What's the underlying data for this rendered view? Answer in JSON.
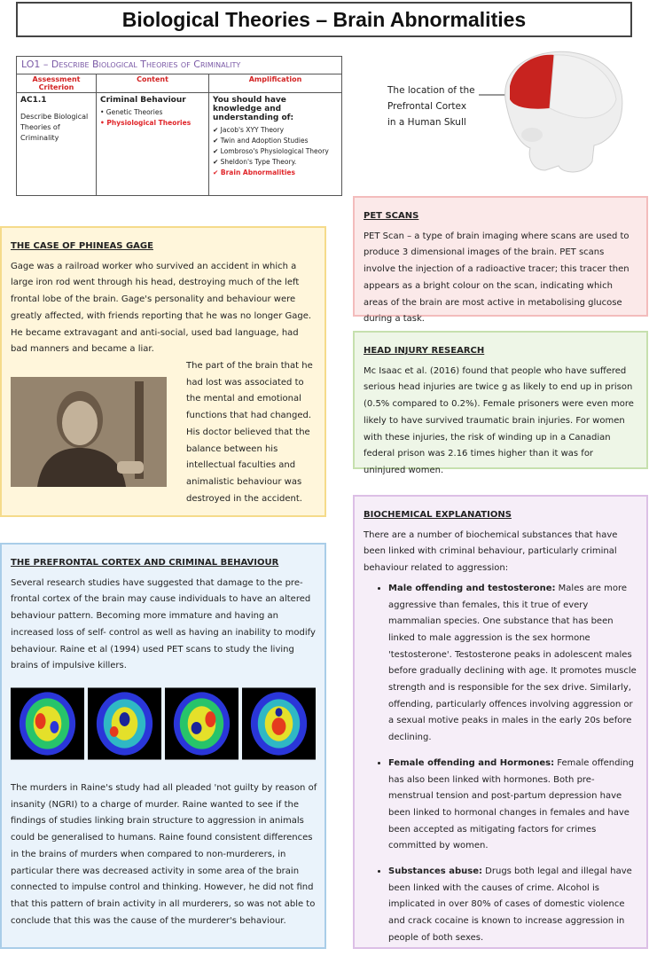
{
  "title": "Biological Theories – Brain Abnormalities",
  "spec": {
    "heading": "LO1 – Describe Biological Theories of Criminality",
    "col_headers": [
      "Assessment Criterion",
      "Content",
      "Amplification"
    ],
    "criterion_code": "AC1.1",
    "criterion_text": "Describe Biological Theories of Criminality",
    "content_title": "Criminal Behaviour",
    "content_items": [
      "• Genetic Theories",
      "• Physiological Theories"
    ],
    "amp_title": "You should have knowledge and understanding of:",
    "amp_items": [
      "✔ Jacob's XYY Theory",
      "✔ Twin and Adoption Studies",
      "✔ Lombroso's Physiological Theory",
      "✔ Sheldon's Type Theory.",
      "✔ Brain Abnormalities"
    ]
  },
  "skull_label": "The location of the Prefrontal Cortex in a Human Skull",
  "pet": {
    "heading": "PET SCANS",
    "text": "PET Scan – a type of brain imaging where scans are used to produce 3 dimensional images of the brain. PET scans involve the injection of a radioactive tracer; this tracer then appears as a bright colour on the scan, indicating which areas of the brain are most active in metabolising glucose during a task."
  },
  "head_injury": {
    "heading": "HEAD INJURY RESEARCH",
    "text": "Mc Isaac et al. (2016) found that people who have suffered serious head injuries are twice g as likely to end up in prison (0.5% compared to 0.2%). Female prisoners were even more likely to have survived traumatic brain injuries. For women with these injuries, the risk of winding up in a Canadian federal prison was 2.16 times higher than it was for uninjured women."
  },
  "gage": {
    "heading": "THE CASE OF PHINEAS GAGE",
    "text1": "Gage was a railroad worker who survived an accident in which a large iron rod went through his head, destroying much of the left frontal lobe of the brain. Gage's personality and behaviour were greatly affected, with friends reporting that he was no longer Gage. He became extravagant and anti-social, used bad language, had bad manners and became a liar.",
    "text2": "The part of the brain that he had lost was associated to the mental and emotional functions that had changed. His doctor believed that the balance between his intellectual faculties and animalistic behaviour was destroyed in the accident."
  },
  "pfc": {
    "heading": "THE PREFRONTAL CORTEX AND CRIMINAL BEHAVIOUR",
    "text1": "Several research studies have suggested that damage to the pre-frontal cortex of the brain may cause individuals to have an altered behaviour pattern. Becoming more immature and having an increased loss of self- control as well as having an inability to modify behaviour. Raine et al (1994) used PET scans to study the living brains of impulsive killers.",
    "text2": "The murders in Raine's study had all pleaded 'not guilty by reason of insanity (NGRI) to a charge of murder. Raine wanted to see if the findings of studies linking brain structure to aggression in animals could be generalised to humans. Raine found consistent differences in the brains of murders when compared to non-murderers, in particular there was decreased activity in some area of the brain connected to impulse control and thinking. However, he did not find that this pattern of brain activity in all murderers, so was not able to conclude that this was the cause of the murderer's behaviour."
  },
  "bio": {
    "heading": "BIOCHEMICAL EXPLANATIONS",
    "intro": "There are a number of biochemical substances that have been linked with criminal behaviour, particularly criminal behaviour related to aggression:",
    "items": [
      {
        "term": "Male offending and testosterone:",
        "text": " Males are more aggressive than females, this it true of every mammalian species. One substance that has been linked to male aggression is the sex hormone 'testosterone'. Testosterone peaks in adolescent males before gradually declining with age. It promotes muscle strength and is responsible for the sex drive. Similarly, offending, particularly offences involving aggression or a sexual motive peaks in males in the early 20s before declining."
      },
      {
        "term": "Female offending and Hormones:",
        "text": " Female offending has also been linked with hormones. Both pre-menstrual tension and post-partum depression have been linked to hormonal changes in females and have been accepted as mitigating factors for crimes committed by women."
      },
      {
        "term": "Substances abuse:",
        "text": " Drugs both legal and illegal have been linked with the causes of crime. Alcohol is implicated in over 80% of cases of domestic violence and crack cocaine is known to increase aggression in people of both sexes."
      }
    ]
  }
}
